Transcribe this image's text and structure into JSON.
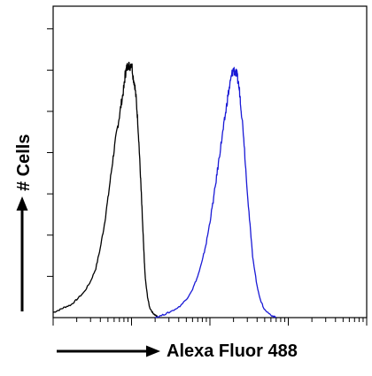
{
  "chart_data": {
    "type": "line",
    "title": "",
    "xlabel": "Alexa Fluor 488",
    "ylabel": "# Cells",
    "x_scale": "log",
    "xlim": [
      1,
      10000
    ],
    "ylim": [
      0,
      1
    ],
    "grid": false,
    "legend": "none",
    "series": [
      {
        "color": "#000000",
        "x": [
          1.0,
          1.2,
          1.4,
          1.7,
          2.0,
          2.5,
          3.0,
          3.5,
          4.0,
          4.5,
          5.0,
          5.5,
          6.0,
          6.5,
          7.0,
          7.5,
          8.0,
          8.3,
          8.6,
          9.0,
          9.5,
          10.0,
          10.5,
          11.0,
          11.5,
          12.0,
          12.5,
          13.0,
          13.5,
          14.0,
          14.5,
          15.0,
          16.0,
          17.0,
          18.5,
          20.0,
          22.0
        ],
        "y": [
          0.02,
          0.03,
          0.04,
          0.05,
          0.07,
          0.1,
          0.14,
          0.19,
          0.27,
          0.36,
          0.46,
          0.56,
          0.65,
          0.72,
          0.78,
          0.84,
          0.89,
          0.94,
          0.96,
          0.98,
          0.97,
          0.99,
          0.93,
          0.9,
          0.84,
          0.76,
          0.66,
          0.55,
          0.44,
          0.33,
          0.23,
          0.15,
          0.08,
          0.04,
          0.02,
          0.01,
          0.0
        ]
      },
      {
        "color": "#1a1ad6",
        "x": [
          20.0,
          25.0,
          30.0,
          40.0,
          50.0,
          60.0,
          70.0,
          80.0,
          90.0,
          100.0,
          110.0,
          120.0,
          130.0,
          140.0,
          150.0,
          160.0,
          170.0,
          180.0,
          190.0,
          200.0,
          210.0,
          220.0,
          230.0,
          240.0,
          250.0,
          270.0,
          290.0,
          320.0,
          350.0,
          400.0,
          450.0,
          500.0,
          600.0,
          700.0
        ],
        "y": [
          0.0,
          0.01,
          0.02,
          0.04,
          0.07,
          0.11,
          0.16,
          0.22,
          0.29,
          0.37,
          0.45,
          0.53,
          0.61,
          0.68,
          0.74,
          0.8,
          0.86,
          0.9,
          0.94,
          0.96,
          0.95,
          0.94,
          0.91,
          0.87,
          0.81,
          0.7,
          0.55,
          0.38,
          0.24,
          0.12,
          0.06,
          0.03,
          0.01,
          0.0
        ]
      }
    ]
  }
}
